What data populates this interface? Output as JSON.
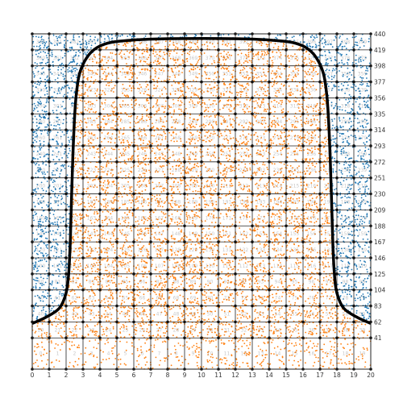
{
  "chart_data": {
    "type": "scatter",
    "x_ticks": [
      0,
      1,
      2,
      3,
      4,
      5,
      6,
      7,
      8,
      9,
      10,
      11,
      12,
      13,
      14,
      15,
      16,
      17,
      18,
      19,
      20
    ],
    "y_ticks": [
      41,
      62,
      83,
      104,
      125,
      146,
      167,
      188,
      209,
      230,
      251,
      272,
      293,
      314,
      335,
      356,
      377,
      398,
      419,
      440
    ],
    "xlim": [
      0,
      20
    ],
    "ylim": [
      0,
      440
    ],
    "grid_x_lines": [
      0,
      1,
      2,
      3,
      4,
      5,
      6,
      7,
      8,
      9,
      10,
      11,
      12,
      13,
      14,
      15,
      16,
      17,
      18,
      19,
      20
    ],
    "grid_y_lines": [
      0,
      41,
      62,
      83,
      104,
      125,
      146,
      167,
      188,
      209,
      230,
      251,
      272,
      293,
      314,
      335,
      356,
      377,
      398,
      419,
      440
    ],
    "series": [
      {
        "color": "#1f77b4",
        "region": "outside"
      },
      {
        "color": "#ff7f0e",
        "region": "inside"
      }
    ],
    "boundary": {
      "color": "#000000",
      "points": [
        [
          0.0,
          60
        ],
        [
          0.8,
          68
        ],
        [
          1.6,
          80
        ],
        [
          2.0,
          100
        ],
        [
          2.15,
          125
        ],
        [
          2.25,
          170
        ],
        [
          2.4,
          280
        ],
        [
          2.6,
          360
        ],
        [
          3.0,
          400
        ],
        [
          4.0,
          424
        ],
        [
          6.0,
          432
        ],
        [
          10.0,
          434
        ],
        [
          14.0,
          432
        ],
        [
          16.0,
          424
        ],
        [
          17.0,
          400
        ],
        [
          17.4,
          360
        ],
        [
          17.6,
          280
        ],
        [
          17.75,
          170
        ],
        [
          17.85,
          125
        ],
        [
          18.0,
          100
        ],
        [
          18.4,
          80
        ],
        [
          19.2,
          68
        ],
        [
          20.0,
          60
        ]
      ]
    },
    "grid_labels_visible": true
  }
}
